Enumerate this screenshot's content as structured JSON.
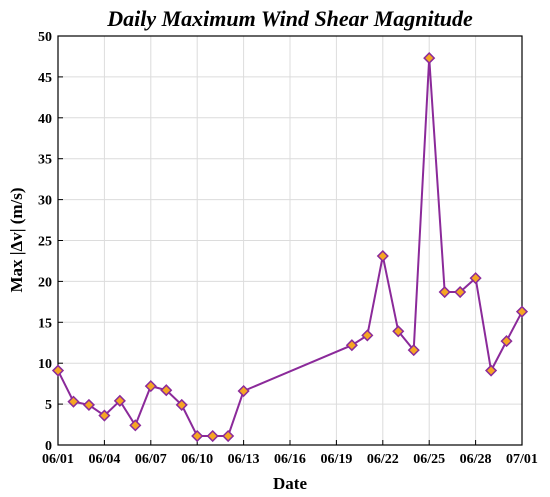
{
  "chart_data": {
    "type": "line",
    "title": "Daily Maximum Wind Shear Magnitude",
    "xlabel": "Date",
    "ylabel": "Max |Δv| (m/s)",
    "x_tick_labels": [
      "06/01",
      "06/04",
      "06/07",
      "06/10",
      "06/13",
      "06/16",
      "06/19",
      "06/22",
      "06/25",
      "06/28",
      "07/01"
    ],
    "x_tick_days": [
      1,
      4,
      7,
      10,
      13,
      16,
      19,
      22,
      25,
      28,
      31
    ],
    "xlim": [
      1,
      31
    ],
    "ylim": [
      0,
      50
    ],
    "y_ticks": [
      0,
      5,
      10,
      15,
      20,
      25,
      30,
      35,
      40,
      45,
      50
    ],
    "grid": true,
    "series": [
      {
        "color": "#8b2a9a",
        "marker_fill": "#f5a623",
        "marker": "diamond",
        "x_days": [
          1,
          2,
          3,
          4,
          5,
          6,
          7,
          8,
          9,
          10,
          11,
          12,
          13,
          20,
          21,
          22,
          23,
          24,
          25,
          26,
          27,
          28,
          29,
          30,
          31
        ],
        "values": [
          9.1,
          5.3,
          4.9,
          3.6,
          5.4,
          2.4,
          7.2,
          6.7,
          4.9,
          1.1,
          1.1,
          1.1,
          6.6,
          12.2,
          13.4,
          23.1,
          13.9,
          11.6,
          47.3,
          18.7,
          18.7,
          20.4,
          9.1,
          12.7,
          16.3
        ]
      }
    ]
  }
}
